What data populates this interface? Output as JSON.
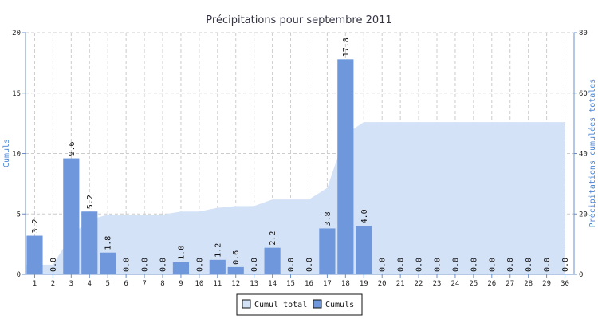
{
  "chart_data": {
    "type": "bar",
    "title": "Précipitations pour septembre 2011",
    "ylabel": "Cumuls",
    "y2label": "Précipitations cumulées totales",
    "categories": [
      "1",
      "2",
      "3",
      "4",
      "5",
      "6",
      "7",
      "8",
      "9",
      "10",
      "11",
      "12",
      "13",
      "14",
      "15",
      "16",
      "17",
      "18",
      "19",
      "20",
      "21",
      "22",
      "23",
      "24",
      "25",
      "26",
      "27",
      "28",
      "29",
      "30"
    ],
    "ylim": [
      0,
      20
    ],
    "y2lim": [
      0,
      80
    ],
    "yticks": [
      0,
      5,
      10,
      15,
      20
    ],
    "y2ticks": [
      0,
      20,
      40,
      60,
      80
    ],
    "grid": true,
    "legend_position": "bottom",
    "series": [
      {
        "name": "Cumul total",
        "type": "area",
        "axis": "right",
        "color": "#d4e2f8",
        "values": [
          3.2,
          3.2,
          12.8,
          18.0,
          19.8,
          19.8,
          19.8,
          19.8,
          20.8,
          20.8,
          22.0,
          22.6,
          22.6,
          24.8,
          24.8,
          24.8,
          28.6,
          46.4,
          50.4,
          50.4,
          50.4,
          50.4,
          50.4,
          50.4,
          50.4,
          50.4,
          50.4,
          50.4,
          50.4,
          50.4
        ]
      },
      {
        "name": "Cumuls",
        "type": "bar",
        "axis": "left",
        "color": "#6f98dc",
        "values": [
          3.2,
          0.0,
          9.6,
          5.2,
          1.8,
          0.0,
          0.0,
          0.0,
          1.0,
          0.0,
          1.2,
          0.6,
          0.0,
          2.2,
          0.0,
          0.0,
          3.8,
          17.8,
          4.0,
          0.0,
          0.0,
          0.0,
          0.0,
          0.0,
          0.0,
          0.0,
          0.0,
          0.0,
          0.0,
          0.0
        ],
        "labels": [
          "3.2",
          "0.0",
          "9.6",
          "5.2",
          "1.8",
          "0.0",
          "0.0",
          "0.0",
          "1.0",
          "0.0",
          "1.2",
          "0.6",
          "0.0",
          "2.2",
          "0.0",
          "0.0",
          "3.8",
          "17.8",
          "4.0",
          "0.0",
          "0.0",
          "0.0",
          "0.0",
          "0.0",
          "0.0",
          "0.0",
          "0.0",
          "0.0",
          "0.0",
          "0.0"
        ]
      }
    ]
  },
  "colors": {
    "area_fill": "#d4e2f8",
    "bar_fill": "#6f98dc",
    "axis_title": "#4a86d8",
    "grid": "#cccccc"
  }
}
